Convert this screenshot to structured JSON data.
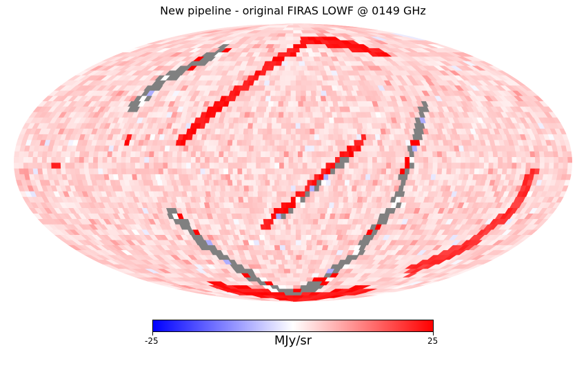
{
  "chart_data": {
    "type": "heatmap",
    "projection": "mollweide",
    "title": "New pipeline - original FIRAS LOWF @ 0149 GHz",
    "colorbar": {
      "min": -25,
      "max": 25,
      "min_label": "-25",
      "max_label": "25",
      "label": "MJy/sr",
      "colormap": "bwr",
      "colors": [
        "#0000ff",
        "#ffffff",
        "#ff0000"
      ]
    },
    "masked_color": "#808080",
    "background_level": 4,
    "features": [
      {
        "name": "upper-right-ridge",
        "value": 25,
        "points": [
          [
            -92,
            62
          ],
          [
            -60,
            70
          ],
          [
            -20,
            72
          ],
          [
            10,
            60
          ],
          [
            30,
            48
          ],
          [
            55,
            28
          ],
          [
            75,
            10
          ]
        ]
      },
      {
        "name": "center-diagonal",
        "value": 25,
        "points": [
          [
            -45,
            12
          ],
          [
            -25,
            -2
          ],
          [
            -5,
            -18
          ],
          [
            15,
            -30
          ]
        ]
      },
      {
        "name": "masked-scan-band",
        "value": null,
        "points": [
          [
            -92,
            30
          ],
          [
            -78,
            8
          ],
          [
            -70,
            -20
          ],
          [
            -55,
            -50
          ],
          [
            -30,
            -72
          ],
          [
            0,
            -80
          ],
          [
            40,
            -70
          ],
          [
            70,
            -45
          ],
          [
            85,
            -25
          ]
        ]
      },
      {
        "name": "masked-inner-diagonal",
        "value": null,
        "points": [
          [
            -38,
            6
          ],
          [
            -10,
            -15
          ],
          [
            10,
            -28
          ]
        ]
      },
      {
        "name": "right-masked-arc",
        "value": null,
        "points": [
          [
            75,
            65
          ],
          [
            90,
            55
          ],
          [
            105,
            45
          ],
          [
            112,
            30
          ]
        ]
      },
      {
        "name": "left-red-arc",
        "value": 22,
        "points": [
          [
            -155,
            -5
          ],
          [
            -150,
            -25
          ],
          [
            -140,
            -45
          ],
          [
            -120,
            -62
          ]
        ]
      },
      {
        "name": "bottom-red-arc",
        "value": 25,
        "points": [
          [
            -110,
            -75
          ],
          [
            -60,
            -82
          ],
          [
            0,
            -84
          ],
          [
            60,
            -80
          ],
          [
            110,
            -72
          ]
        ]
      },
      {
        "name": "right-hotspot",
        "value": 25,
        "points": [
          [
            152,
            -2
          ]
        ]
      },
      {
        "name": "center-hotspot",
        "value": 25,
        "points": [
          [
            20,
            -33
          ]
        ]
      },
      {
        "name": "right-hotspot-2",
        "value": 25,
        "points": [
          [
            108,
            12
          ]
        ]
      }
    ]
  }
}
